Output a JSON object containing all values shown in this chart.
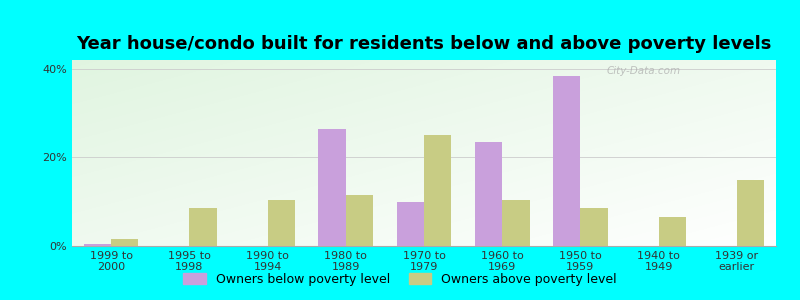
{
  "title": "Year house/condo built for residents below and above poverty levels",
  "categories": [
    "1999 to\n2000",
    "1995 to\n1998",
    "1990 to\n1994",
    "1980 to\n1989",
    "1970 to\n1979",
    "1960 to\n1969",
    "1950 to\n1959",
    "1940 to\n1949",
    "1939 or\nearlier"
  ],
  "below_poverty": [
    0.5,
    0.0,
    0.0,
    26.5,
    10.0,
    23.5,
    38.5,
    0.0,
    0.0
  ],
  "above_poverty": [
    1.5,
    8.5,
    10.5,
    11.5,
    25.0,
    10.5,
    8.5,
    6.5,
    15.0
  ],
  "below_color": "#c9a0dc",
  "above_color": "#c8cc84",
  "bg_color": "#00ffff",
  "ylim": [
    0,
    42
  ],
  "yticks": [
    0,
    20,
    40
  ],
  "ytick_labels": [
    "0%",
    "20%",
    "40%"
  ],
  "legend_below_label": "Owners below poverty level",
  "legend_above_label": "Owners above poverty level",
  "title_fontsize": 13,
  "tick_fontsize": 8,
  "legend_fontsize": 9,
  "watermark": "City-Data.com"
}
